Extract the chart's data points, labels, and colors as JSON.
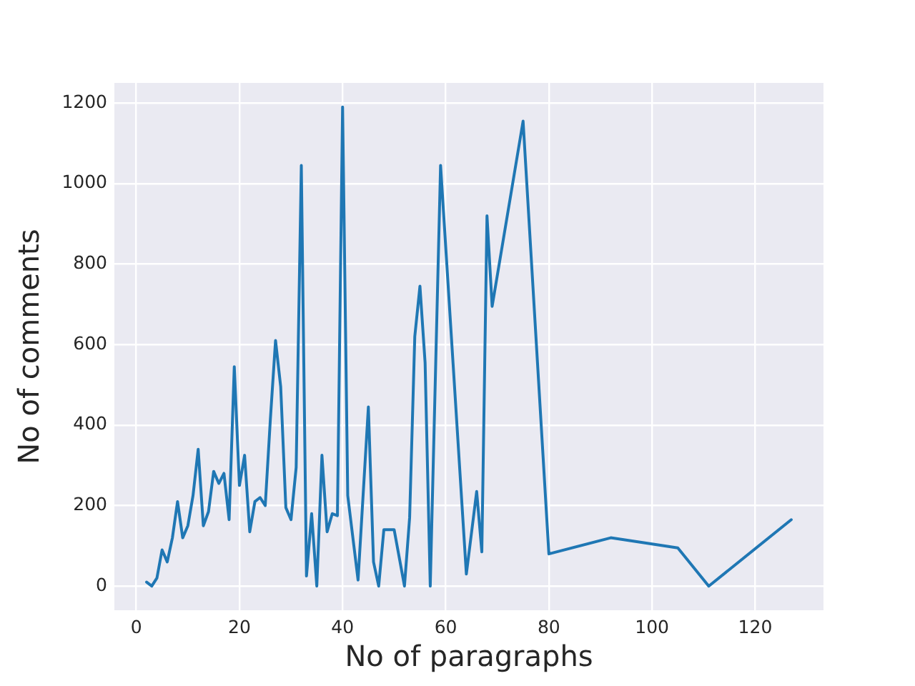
{
  "chart_data": {
    "type": "line",
    "xlabel": "No of paragraphs",
    "ylabel": "No of comments",
    "x": [
      2,
      3,
      4,
      5,
      6,
      7,
      8,
      9,
      10,
      11,
      12,
      13,
      14,
      15,
      16,
      17,
      18,
      19,
      20,
      21,
      22,
      23,
      24,
      25,
      26,
      27,
      28,
      29,
      30,
      31,
      32,
      33,
      34,
      35,
      36,
      37,
      38,
      39,
      40,
      41,
      43,
      45,
      46,
      47,
      48,
      50,
      52,
      53,
      54,
      55,
      56,
      57,
      59,
      64,
      66,
      67,
      68,
      69,
      75,
      80,
      92,
      105,
      111,
      127
    ],
    "series": [
      {
        "color": "#1f77b4",
        "values": [
          10,
          0,
          20,
          90,
          60,
          120,
          210,
          120,
          150,
          225,
          340,
          150,
          185,
          285,
          255,
          280,
          165,
          545,
          250,
          325,
          135,
          210,
          220,
          200,
          415,
          610,
          495,
          195,
          165,
          295,
          1045,
          25,
          180,
          0,
          325,
          135,
          180,
          175,
          1190,
          225,
          15,
          445,
          60,
          0,
          140,
          140,
          0,
          170,
          620,
          745,
          555,
          0,
          1045,
          30,
          235,
          85,
          920,
          695,
          1155,
          80,
          120,
          95,
          0,
          165
        ]
      }
    ],
    "xlim": [
      -4.25,
      133.25
    ],
    "ylim": [
      -60,
      1250
    ],
    "xticks": [
      0,
      20,
      40,
      60,
      80,
      100,
      120
    ],
    "yticks": [
      0,
      200,
      400,
      600,
      800,
      1000,
      1200
    ],
    "grid": true,
    "marker": "none",
    "line_style": "solid"
  }
}
